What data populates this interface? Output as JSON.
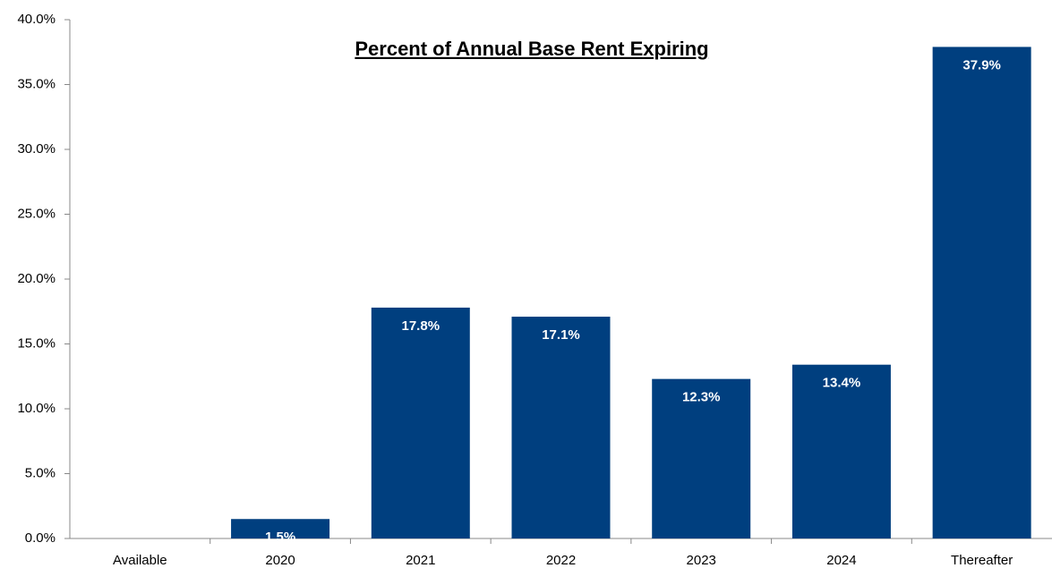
{
  "chart_data": {
    "type": "bar",
    "title": "Percent of Annual Base Rent Expiring",
    "categories": [
      "Available",
      "2020",
      "2021",
      "2022",
      "2023",
      "2024",
      "Thereafter"
    ],
    "values": [
      null,
      1.5,
      17.8,
      17.1,
      12.3,
      13.4,
      37.9
    ],
    "value_labels": [
      null,
      "1.5%",
      "17.8%",
      "17.1%",
      "12.3%",
      "13.4%",
      "37.9%"
    ],
    "color": "#003f7f",
    "ylim": [
      0,
      40
    ],
    "yticks": [
      {
        "value": 0,
        "label": "0.0%"
      },
      {
        "value": 5,
        "label": "5.0%"
      },
      {
        "value": 10,
        "label": "10.0%"
      },
      {
        "value": 15,
        "label": "15.0%"
      },
      {
        "value": 20,
        "label": "20.0%"
      },
      {
        "value": 25,
        "label": "25.0%"
      },
      {
        "value": 30,
        "label": "30.0%"
      },
      {
        "value": 35,
        "label": "35.0%"
      },
      {
        "value": 40,
        "label": "40.0%"
      }
    ],
    "grid": false
  }
}
